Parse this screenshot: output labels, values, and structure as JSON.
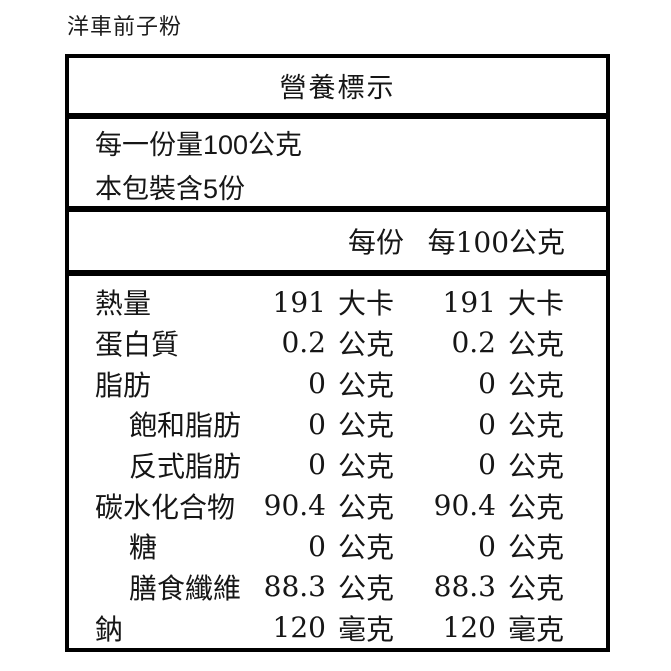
{
  "page": {
    "title": "洋車前子粉"
  },
  "nutrition_label": {
    "header": "營養標示",
    "serving_info": {
      "line1": "每一份量100公克",
      "line2": "本包裝含5份"
    },
    "columns": {
      "per_serving": "每份",
      "per_100g": "每100公克"
    },
    "rows": [
      {
        "name": "熱量",
        "value_per_serving": "191",
        "unit_per_serving": "大卡",
        "value_per_100g": "191",
        "unit_per_100g": "大卡"
      },
      {
        "name": "蛋白質",
        "value_per_serving": "0.2",
        "unit_per_serving": "公克",
        "value_per_100g": "0.2",
        "unit_per_100g": "公克"
      },
      {
        "name": "脂肪",
        "value_per_serving": "0",
        "unit_per_serving": "公克",
        "value_per_100g": "0",
        "unit_per_100g": "公克"
      },
      {
        "name": "飽和脂肪",
        "value_per_serving": "0",
        "unit_per_serving": "公克",
        "value_per_100g": "0",
        "unit_per_100g": "公克"
      },
      {
        "name": "反式脂肪",
        "value_per_serving": "0",
        "unit_per_serving": "公克",
        "value_per_100g": "0",
        "unit_per_100g": "公克"
      },
      {
        "name": "碳水化合物",
        "value_per_serving": "90.4",
        "unit_per_serving": "公克",
        "value_per_100g": "90.4",
        "unit_per_100g": "公克"
      },
      {
        "name": "糖",
        "value_per_serving": "0",
        "unit_per_serving": "公克",
        "value_per_100g": "0",
        "unit_per_100g": "公克"
      },
      {
        "name": "膳食纖維",
        "value_per_serving": "88.3",
        "unit_per_serving": "公克",
        "value_per_100g": "88.3",
        "unit_per_100g": "公克"
      },
      {
        "name": "鈉",
        "value_per_serving": "120",
        "unit_per_serving": "毫克",
        "value_per_100g": "120",
        "unit_per_100g": "毫克"
      }
    ]
  },
  "colors": {
    "background": "#ffffff",
    "text": "#161616",
    "border": "#000000"
  }
}
